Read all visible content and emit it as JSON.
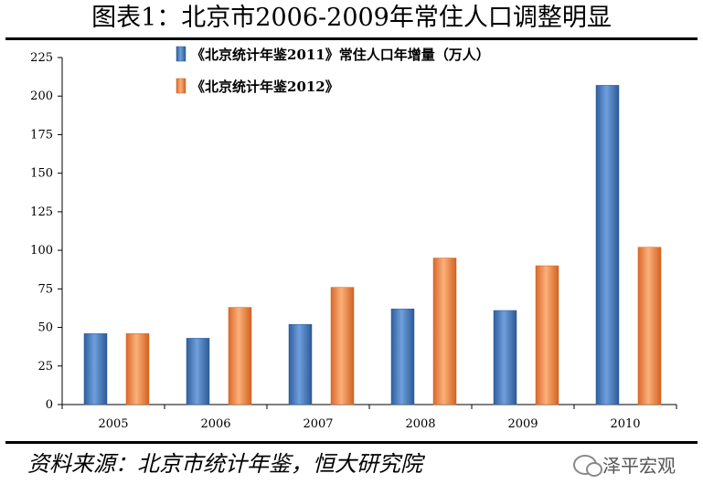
{
  "title": "图表1：北京市2006-2009年常住人口调整明显",
  "source": "资料来源：北京市统计年鉴，恒大研究院",
  "watermark": {
    "text": "泽平宏观",
    "icon": "wechat-icon"
  },
  "colors": {
    "series1": "#4a7dc0",
    "series2": "#f0904a"
  },
  "chart_data": {
    "type": "bar",
    "categories": [
      "2005",
      "2006",
      "2007",
      "2008",
      "2009",
      "2010"
    ],
    "series": [
      {
        "name": "《北京统计年鉴2011》常住人口年增量（万人）",
        "values": [
          46,
          43,
          52,
          62,
          61,
          207
        ]
      },
      {
        "name": "《北京统计年鉴2012》",
        "values": [
          46,
          63,
          76,
          95,
          90,
          102
        ]
      }
    ],
    "ylim": [
      0,
      225
    ],
    "yticks": [
      "0",
      "25",
      "50",
      "75",
      "100",
      "125",
      "150",
      "175",
      "200",
      "225"
    ],
    "legend_position": "top-center"
  }
}
